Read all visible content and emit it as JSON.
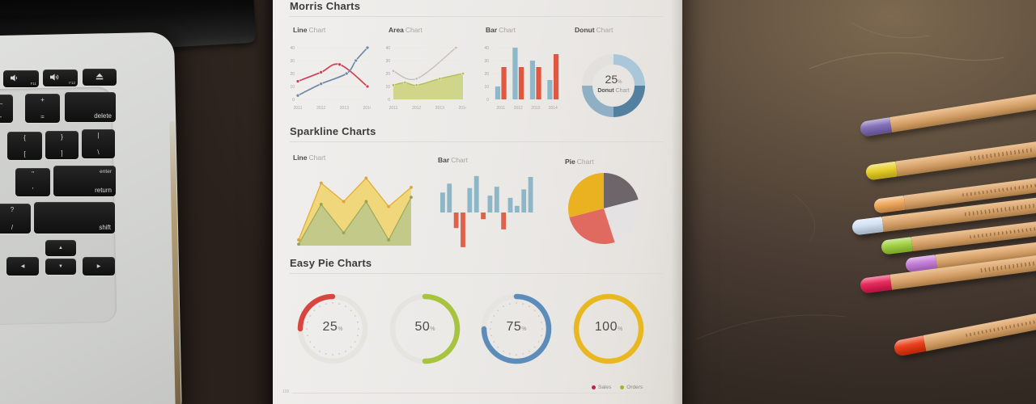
{
  "scene": {
    "desk_dark": "#2a211c",
    "desk_light": "#7d6950"
  },
  "laptop": {
    "keys": [
      {
        "label": "F11",
        "icon": "volume-down-icon"
      },
      {
        "label": "F12",
        "icon": "volume-up-icon"
      },
      {
        "icon": "eject-icon"
      },
      {
        "top": "_",
        "bottom": "-"
      },
      {
        "top": "+",
        "bottom": "="
      },
      {
        "label": "delete"
      },
      {
        "top": "{",
        "bottom": "["
      },
      {
        "top": "}",
        "bottom": "]"
      },
      {
        "top": "|",
        "bottom": "\\"
      },
      {
        "top": "\"",
        "bottom": "'"
      },
      {
        "top": "enter",
        "bottom": "return"
      },
      {
        "top": "?",
        "bottom": "/"
      },
      {
        "label": "shift"
      },
      {
        "label": "◀"
      },
      {
        "label": "▲"
      },
      {
        "label": "▼"
      },
      {
        "label": "▶"
      }
    ]
  },
  "paper": {
    "morris": {
      "title": "Morris Charts",
      "labels": [
        {
          "strong": "Line",
          "rest": "Chart"
        },
        {
          "strong": "Area",
          "rest": "Chart"
        },
        {
          "strong": "Bar",
          "rest": "Chart"
        },
        {
          "strong": "Donut",
          "rest": "Chart"
        }
      ]
    },
    "sparkline": {
      "title": "Sparkline Charts",
      "labels": [
        {
          "strong": "Line",
          "rest": "Chart"
        },
        {
          "strong": "Bar",
          "rest": "Chart"
        },
        {
          "strong": "Pie",
          "rest": "Chart"
        }
      ]
    },
    "easypie": {
      "title": "Easy Pie Charts"
    }
  },
  "chart_data": [
    {
      "id": "morris-line",
      "type": "line",
      "title": "Line Chart",
      "x": [
        2011,
        2012,
        2013,
        2014
      ],
      "ylim": [
        0,
        40
      ],
      "yticks": [
        0,
        10,
        20,
        30,
        40
      ],
      "grid": true,
      "series": [
        {
          "name": "red",
          "color": "#cf3e56",
          "points": [
            [
              2011,
              14
            ],
            [
              2012,
              21
            ],
            [
              2012.8,
              27
            ],
            [
              2014,
              10
            ]
          ]
        },
        {
          "name": "blue",
          "color": "#6d8aa8",
          "points": [
            [
              2011,
              3
            ],
            [
              2012,
              12
            ],
            [
              2013.1,
              20
            ],
            [
              2013.5,
              30
            ],
            [
              2014,
              40
            ]
          ]
        }
      ]
    },
    {
      "id": "morris-area",
      "type": "area",
      "title": "Area Chart",
      "x": [
        2011,
        2012,
        2013,
        2014
      ],
      "ylim": [
        0,
        40
      ],
      "yticks": [
        0,
        10,
        20,
        30,
        40
      ],
      "grid": true,
      "series": [
        {
          "name": "gray-line",
          "color": "#c4c0b9",
          "fill": "none",
          "points": [
            [
              2011,
              22
            ],
            [
              2012,
              16
            ],
            [
              2013.7,
              40
            ]
          ]
        },
        {
          "name": "olive-area",
          "color": "#b4bd51",
          "fill": "#ccd37e",
          "points": [
            [
              2011,
              11
            ],
            [
              2011.5,
              13
            ],
            [
              2012,
              11
            ],
            [
              2013,
              16
            ],
            [
              2014,
              20
            ]
          ]
        }
      ]
    },
    {
      "id": "morris-bar",
      "type": "bar",
      "title": "Bar Chart",
      "categories": [
        2011,
        2012,
        2013,
        2014
      ],
      "ylim": [
        0,
        40
      ],
      "yticks": [
        0,
        10,
        20,
        30,
        40
      ],
      "series": [
        {
          "name": "blue",
          "color": "#8cb8ca",
          "values": [
            10,
            40,
            30,
            15
          ]
        },
        {
          "name": "red",
          "color": "#e2573f",
          "values": [
            25,
            25,
            25,
            35
          ]
        }
      ]
    },
    {
      "id": "morris-donut",
      "type": "donut",
      "title": "Donut Chart",
      "center_value": "25",
      "center_unit": "%",
      "center_label_strong": "Donut",
      "center_label_rest": "Chart",
      "segments": [
        {
          "name": "light-blue",
          "value": 25,
          "color": "#a9c7d9"
        },
        {
          "name": "dark-blue",
          "value": 25,
          "color": "#54809f"
        },
        {
          "name": "medium-blue",
          "value": 25,
          "color": "#8fb0c4"
        },
        {
          "name": "pale-gray",
          "value": 25,
          "color": "#e3e1dd"
        }
      ]
    },
    {
      "id": "spark-line",
      "type": "area",
      "title": "Line Chart",
      "ylim": [
        0,
        100
      ],
      "series": [
        {
          "name": "yellow",
          "color": "#e3ae36",
          "fill": "#f1d572",
          "marker": "#e0a23a",
          "values": [
            8,
            88,
            62,
            95,
            55,
            82
          ]
        },
        {
          "name": "green",
          "color": "#9fab5e",
          "fill": "#bfc98a",
          "marker": "#96a353",
          "values": [
            2,
            58,
            18,
            62,
            8,
            68
          ]
        }
      ]
    },
    {
      "id": "spark-bar",
      "type": "bar",
      "title": "Bar Chart",
      "values": [
        45,
        65,
        -35,
        -78,
        55,
        82,
        -15,
        38,
        58,
        -38,
        33,
        15,
        52,
        80
      ],
      "positive_color": "#8db6c7",
      "negative_color": "#df604b"
    },
    {
      "id": "spark-pie",
      "type": "pie",
      "title": "Pie Chart",
      "start_angle": 0,
      "slices": [
        {
          "name": "dark-gray",
          "value": 21,
          "color": "#6d6569"
        },
        {
          "name": "light-gray",
          "value": 24,
          "color": "#e4e2e2"
        },
        {
          "name": "red",
          "value": 26,
          "color": "#e06a5f"
        },
        {
          "name": "yellow",
          "value": 29,
          "color": "#eab221"
        }
      ]
    },
    {
      "id": "gauge-25",
      "type": "gauge",
      "value": 25,
      "unit": "%",
      "color": "#d9453f",
      "arc": [
        270,
        360
      ],
      "ticks": true
    },
    {
      "id": "gauge-50",
      "type": "gauge",
      "value": 50,
      "unit": "%",
      "color": "#a6c43e",
      "arc": [
        0,
        180
      ],
      "ticks": false
    },
    {
      "id": "gauge-75",
      "type": "gauge",
      "value": 75,
      "unit": "%",
      "color": "#5c8cba",
      "arc": [
        0,
        270
      ],
      "ticks": true
    },
    {
      "id": "gauge-100",
      "type": "gauge",
      "value": 100,
      "unit": "%",
      "color": "#e9b820",
      "arc": [
        0,
        360
      ],
      "ticks": false
    },
    {
      "id": "bottom-partial",
      "type": "line",
      "ytick": "100",
      "legend": [
        {
          "label": "Sales",
          "color": "#c81e4e"
        },
        {
          "label": "Orders",
          "color": "#9cb728"
        }
      ]
    }
  ],
  "pencils": [
    {
      "name": "purple",
      "cap": "#7a66b4"
    },
    {
      "name": "yellow",
      "cap": "#e6cd1d"
    },
    {
      "name": "orange",
      "cap": "#efa253"
    },
    {
      "name": "pale-blue",
      "cap": "#cfdff1"
    },
    {
      "name": "lime-green",
      "cap": "#9ccf35"
    },
    {
      "name": "lilac",
      "cap": "#c276d7"
    },
    {
      "name": "crimson",
      "cap": "#e51a50"
    },
    {
      "name": "red",
      "cap": "#e8330b"
    }
  ]
}
